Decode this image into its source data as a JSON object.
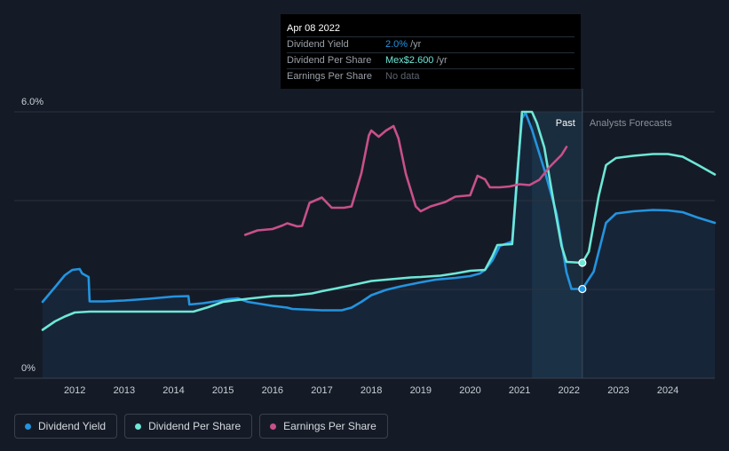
{
  "chart_data": {
    "type": "line",
    "y_tick_labels": [
      "0%",
      "6.0%"
    ],
    "ylim": [
      0,
      6
    ],
    "xlim": [
      2011.35,
      2024.95
    ],
    "x_tick_labels": [
      "2012",
      "2013",
      "2014",
      "2015",
      "2016",
      "2017",
      "2018",
      "2019",
      "2020",
      "2021",
      "2022",
      "2023",
      "2024"
    ],
    "past_label": "Past",
    "forecast_label": "Analysts Forecasts",
    "forecast_start": 2022.27,
    "highlight_start": 2021.25,
    "grid": true,
    "legend_position": "bottom-left",
    "colors": {
      "yield": "#2394df",
      "dps": "#6ee7d7",
      "eps": "#c8508a",
      "background": "#151b26",
      "grid": "#2b323d",
      "area": "#17263a"
    },
    "series": [
      {
        "key": "yield",
        "name": "Dividend Yield",
        "points": [
          [
            2011.35,
            1.72
          ],
          [
            2011.6,
            2.05
          ],
          [
            2011.8,
            2.32
          ],
          [
            2011.95,
            2.44
          ],
          [
            2012.1,
            2.46
          ],
          [
            2012.15,
            2.36
          ],
          [
            2012.28,
            2.28
          ],
          [
            2012.3,
            1.73
          ],
          [
            2012.6,
            1.73
          ],
          [
            2013.0,
            1.75
          ],
          [
            2013.5,
            1.79
          ],
          [
            2014.0,
            1.84
          ],
          [
            2014.3,
            1.85
          ],
          [
            2014.32,
            1.66
          ],
          [
            2014.6,
            1.69
          ],
          [
            2014.9,
            1.74
          ],
          [
            2015.1,
            1.78
          ],
          [
            2015.3,
            1.8
          ],
          [
            2015.5,
            1.72
          ],
          [
            2016.0,
            1.63
          ],
          [
            2016.3,
            1.59
          ],
          [
            2016.4,
            1.56
          ],
          [
            2016.8,
            1.54
          ],
          [
            2017.0,
            1.53
          ],
          [
            2017.4,
            1.53
          ],
          [
            2017.6,
            1.59
          ],
          [
            2017.8,
            1.72
          ],
          [
            2018.0,
            1.87
          ],
          [
            2018.3,
            1.99
          ],
          [
            2018.6,
            2.07
          ],
          [
            2019.0,
            2.16
          ],
          [
            2019.3,
            2.22
          ],
          [
            2019.7,
            2.26
          ],
          [
            2020.0,
            2.3
          ],
          [
            2020.2,
            2.36
          ],
          [
            2020.3,
            2.44
          ],
          [
            2020.45,
            2.65
          ],
          [
            2020.6,
            2.98
          ],
          [
            2020.85,
            3.08
          ],
          [
            2020.95,
            4.6
          ],
          [
            2021.05,
            5.85
          ],
          [
            2021.12,
            5.98
          ],
          [
            2021.25,
            5.6
          ],
          [
            2021.5,
            4.7
          ],
          [
            2021.75,
            3.7
          ],
          [
            2021.95,
            2.38
          ],
          [
            2022.05,
            2.01
          ],
          [
            2022.27,
            2.01
          ],
          [
            2022.5,
            2.4
          ],
          [
            2022.75,
            3.5
          ],
          [
            2022.95,
            3.71
          ],
          [
            2023.3,
            3.76
          ],
          [
            2023.7,
            3.79
          ],
          [
            2024.0,
            3.78
          ],
          [
            2024.3,
            3.74
          ],
          [
            2024.6,
            3.62
          ],
          [
            2024.95,
            3.5
          ]
        ]
      },
      {
        "key": "dps",
        "name": "Dividend Per Share",
        "points": [
          [
            2011.35,
            1.09
          ],
          [
            2011.6,
            1.28
          ],
          [
            2011.8,
            1.39
          ],
          [
            2012.0,
            1.48
          ],
          [
            2012.3,
            1.5
          ],
          [
            2013.0,
            1.5
          ],
          [
            2014.0,
            1.5
          ],
          [
            2014.4,
            1.5
          ],
          [
            2014.7,
            1.6
          ],
          [
            2015.0,
            1.72
          ],
          [
            2015.5,
            1.79
          ],
          [
            2016.0,
            1.85
          ],
          [
            2016.4,
            1.86
          ],
          [
            2016.8,
            1.91
          ],
          [
            2017.0,
            1.96
          ],
          [
            2017.5,
            2.07
          ],
          [
            2018.0,
            2.19
          ],
          [
            2018.3,
            2.22
          ],
          [
            2018.8,
            2.27
          ],
          [
            2019.0,
            2.28
          ],
          [
            2019.4,
            2.31
          ],
          [
            2019.7,
            2.36
          ],
          [
            2020.0,
            2.42
          ],
          [
            2020.3,
            2.44
          ],
          [
            2020.45,
            2.75
          ],
          [
            2020.55,
            3.0
          ],
          [
            2020.85,
            3.02
          ],
          [
            2020.95,
            4.5
          ],
          [
            2021.05,
            6.0
          ],
          [
            2021.25,
            6.0
          ],
          [
            2021.35,
            5.75
          ],
          [
            2021.5,
            5.2
          ],
          [
            2021.7,
            3.9
          ],
          [
            2021.85,
            2.98
          ],
          [
            2021.95,
            2.62
          ],
          [
            2022.27,
            2.6
          ],
          [
            2022.4,
            2.85
          ],
          [
            2022.6,
            4.1
          ],
          [
            2022.75,
            4.8
          ],
          [
            2022.95,
            4.96
          ],
          [
            2023.3,
            5.01
          ],
          [
            2023.7,
            5.05
          ],
          [
            2024.0,
            5.05
          ],
          [
            2024.3,
            4.99
          ],
          [
            2024.6,
            4.81
          ],
          [
            2024.95,
            4.59
          ]
        ]
      },
      {
        "key": "eps",
        "name": "Earnings Per Share",
        "points": [
          [
            2015.45,
            3.23
          ],
          [
            2015.7,
            3.33
          ],
          [
            2016.0,
            3.36
          ],
          [
            2016.2,
            3.44
          ],
          [
            2016.3,
            3.49
          ],
          [
            2016.5,
            3.42
          ],
          [
            2016.6,
            3.43
          ],
          [
            2016.75,
            3.95
          ],
          [
            2017.0,
            4.07
          ],
          [
            2017.2,
            3.84
          ],
          [
            2017.45,
            3.84
          ],
          [
            2017.6,
            3.87
          ],
          [
            2017.8,
            4.62
          ],
          [
            2017.95,
            5.47
          ],
          [
            2018.0,
            5.58
          ],
          [
            2018.15,
            5.44
          ],
          [
            2018.3,
            5.58
          ],
          [
            2018.45,
            5.68
          ],
          [
            2018.55,
            5.4
          ],
          [
            2018.7,
            4.6
          ],
          [
            2018.9,
            3.87
          ],
          [
            2019.0,
            3.76
          ],
          [
            2019.2,
            3.87
          ],
          [
            2019.5,
            3.97
          ],
          [
            2019.7,
            4.09
          ],
          [
            2020.0,
            4.12
          ],
          [
            2020.15,
            4.56
          ],
          [
            2020.3,
            4.48
          ],
          [
            2020.4,
            4.3
          ],
          [
            2020.6,
            4.3
          ],
          [
            2020.8,
            4.32
          ],
          [
            2021.0,
            4.37
          ],
          [
            2021.2,
            4.35
          ],
          [
            2021.4,
            4.47
          ],
          [
            2021.6,
            4.75
          ],
          [
            2021.85,
            5.03
          ],
          [
            2021.95,
            5.21
          ]
        ]
      }
    ],
    "markers": [
      {
        "series": "dps",
        "x": 2022.27,
        "y": 2.6
      },
      {
        "series": "yield",
        "x": 2022.27,
        "y": 2.01
      }
    ]
  },
  "tooltip": {
    "date": "Apr 08 2022",
    "rows": [
      {
        "label": "Dividend Yield",
        "value": "2.0%",
        "unit": "/yr"
      },
      {
        "label": "Dividend Per Share",
        "value": "Mex$2.600",
        "unit": "/yr"
      },
      {
        "label": "Earnings Per Share",
        "value": "No data",
        "unit": ""
      }
    ]
  },
  "legend": {
    "items": [
      {
        "label": "Dividend Yield",
        "color": "#2394df"
      },
      {
        "label": "Dividend Per Share",
        "color": "#6ee7d7"
      },
      {
        "label": "Earnings Per Share",
        "color": "#c8508a"
      }
    ]
  }
}
